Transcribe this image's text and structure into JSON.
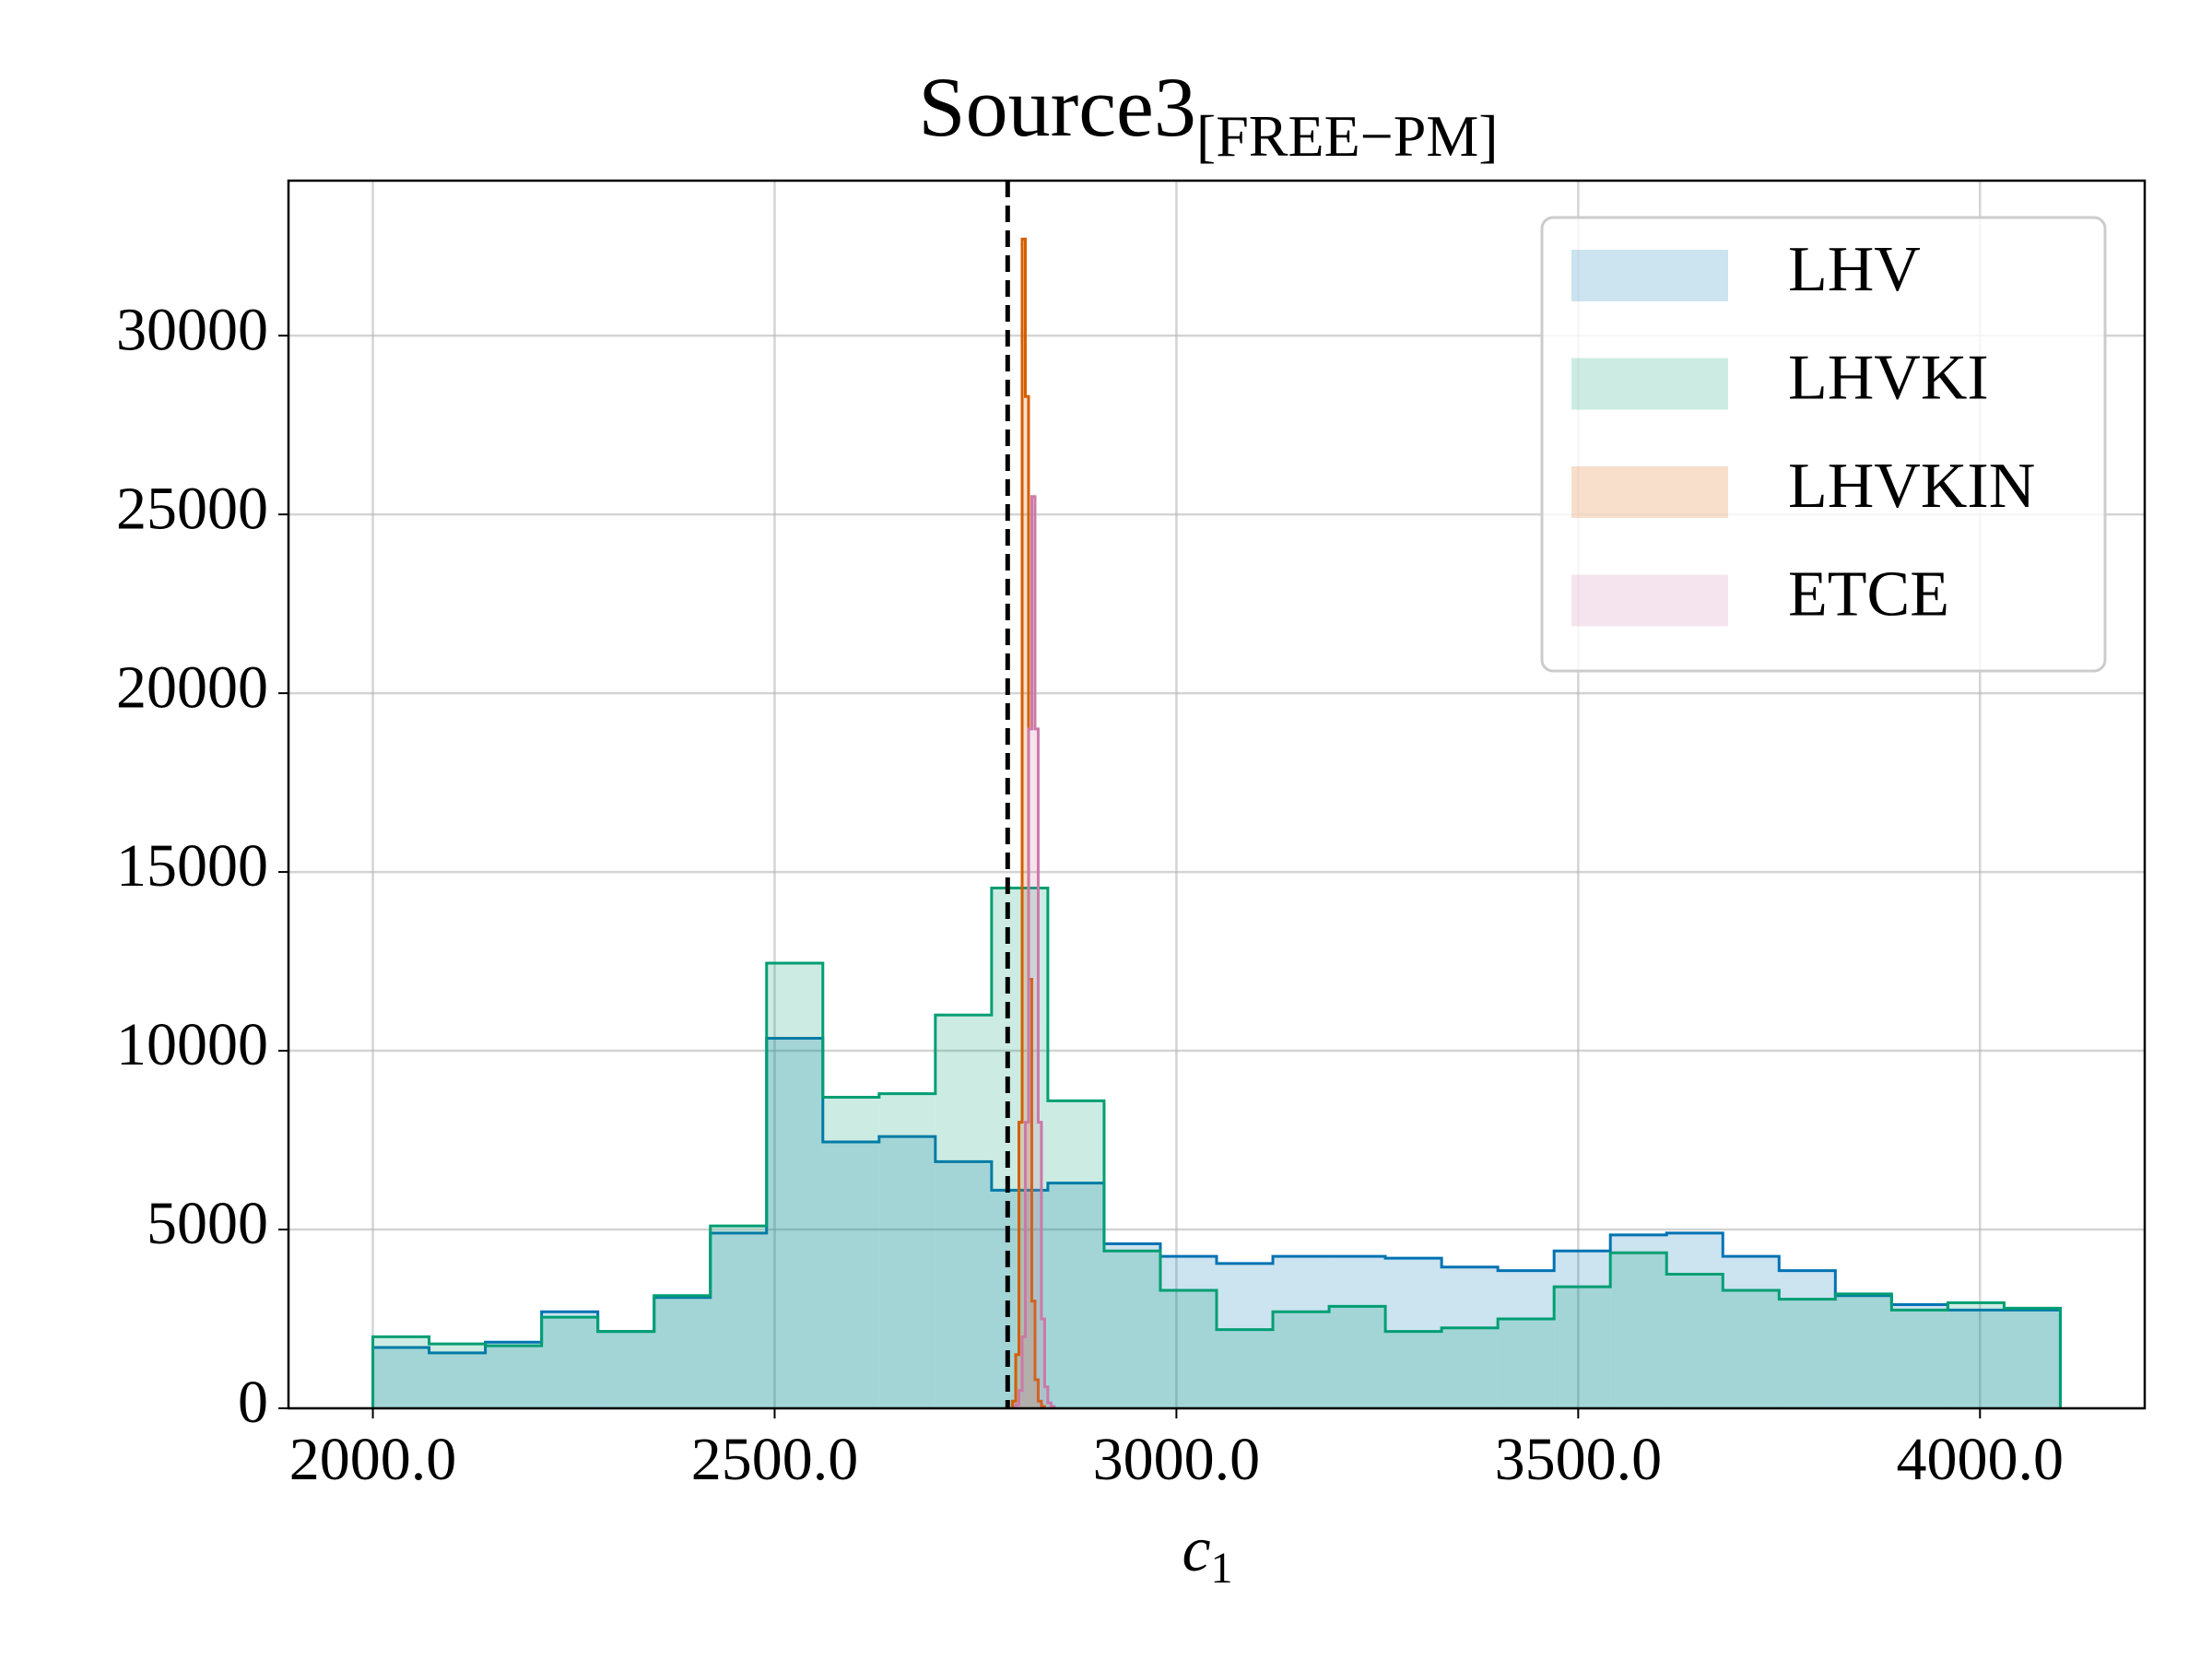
{
  "chart_data": {
    "type": "histogram",
    "title": "Source3",
    "title_subscript": "[FREE−PM]",
    "x_label": "c",
    "x_label_subscript": "1",
    "xlim": [
      1895,
      4205
    ],
    "ylim": [
      0,
      34335
    ],
    "xticks": [
      {
        "value": 2000,
        "label": "2000.0"
      },
      {
        "value": 2500,
        "label": "2500.0"
      },
      {
        "value": 3000,
        "label": "3000.0"
      },
      {
        "value": 3500,
        "label": "3500.0"
      },
      {
        "value": 4000,
        "label": "4000.0"
      }
    ],
    "yticks": [
      0,
      5000,
      10000,
      15000,
      20000,
      25000,
      30000
    ],
    "grid": true,
    "legend": "upper right",
    "vline": {
      "x": 2790,
      "color": "#000000",
      "style": "dashed"
    },
    "series": [
      {
        "name": "LHV",
        "color": "#0072b2",
        "bins": [
          2000,
          2070,
          2140,
          2210,
          2280,
          2350,
          2420,
          2490,
          2560,
          2630,
          2700,
          2770,
          2840,
          2910,
          2980,
          3050,
          3120,
          3190,
          3260,
          3330,
          3400,
          3470,
          3540,
          3610,
          3680,
          3750,
          3820,
          3890,
          3960,
          4030,
          4100
        ],
        "values": [
          1700,
          1550,
          1850,
          2700,
          2150,
          3100,
          4900,
          10350,
          7450,
          7600,
          6900,
          6100,
          6300,
          4600,
          4250,
          4050,
          4250,
          4250,
          4200,
          3950,
          3850,
          4400,
          4850,
          4900,
          4250,
          3850,
          3150,
          2900,
          2750,
          2750
        ]
      },
      {
        "name": "LHVKI",
        "color": "#009e73",
        "bins": [
          2000,
          2070,
          2140,
          2210,
          2280,
          2350,
          2420,
          2490,
          2560,
          2630,
          2700,
          2770,
          2840,
          2910,
          2980,
          3050,
          3120,
          3190,
          3260,
          3330,
          3400,
          3470,
          3540,
          3610,
          3680,
          3750,
          3820,
          3890,
          3960,
          4030,
          4100
        ],
        "values": [
          2000,
          1800,
          1750,
          2550,
          2150,
          3150,
          5100,
          12450,
          8700,
          8800,
          11000,
          14550,
          8600,
          4400,
          3300,
          2200,
          2700,
          2850,
          2150,
          2250,
          2500,
          3400,
          4350,
          3750,
          3300,
          3050,
          3200,
          2750,
          2950,
          2800
        ]
      },
      {
        "name": "LHVKIN",
        "color": "#d55e00",
        "bins": [
          2796,
          2800,
          2804,
          2808,
          2812,
          2816,
          2820,
          2824,
          2828,
          2832,
          2836
        ],
        "values": [
          200,
          1500,
          8000,
          32700,
          28300,
          12000,
          3000,
          800,
          200,
          50
        ]
      },
      {
        "name": "ETCE",
        "color": "#cc79a7",
        "bins": [
          2800,
          2804,
          2808,
          2812,
          2816,
          2820,
          2824,
          2828,
          2832,
          2836,
          2840,
          2844,
          2848
        ],
        "values": [
          100,
          500,
          2000,
          8000,
          19000,
          25500,
          19000,
          8000,
          2500,
          600,
          150,
          50
        ]
      }
    ]
  }
}
